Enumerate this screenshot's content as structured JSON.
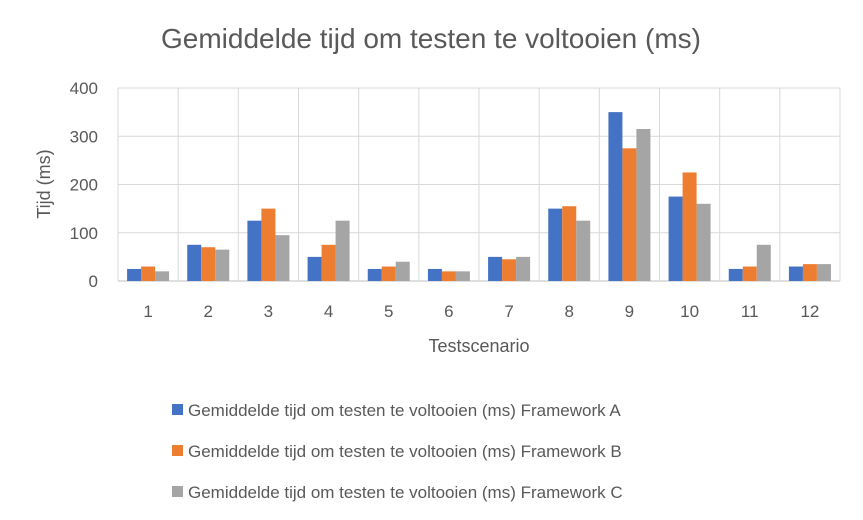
{
  "chart_data": {
    "type": "bar",
    "title": "Gemiddelde tijd om testen te voltooien (ms)",
    "xlabel": "Testscenario",
    "ylabel": "Tijd (ms)",
    "ylim": [
      0,
      400
    ],
    "yticks": [
      0,
      100,
      200,
      300,
      400
    ],
    "grid": true,
    "legend_position": "bottom",
    "categories": [
      "1",
      "2",
      "3",
      "4",
      "5",
      "6",
      "7",
      "8",
      "9",
      "10",
      "11",
      "12"
    ],
    "series": [
      {
        "name": "Gemiddelde tijd om testen te voltooien (ms) Framework A",
        "color": "#4472C4",
        "values": [
          25,
          75,
          125,
          50,
          25,
          25,
          50,
          150,
          350,
          175,
          25,
          30
        ]
      },
      {
        "name": "Gemiddelde tijd om testen te voltooien (ms) Framework B",
        "color": "#ED7D31",
        "values": [
          30,
          70,
          150,
          75,
          30,
          20,
          45,
          155,
          275,
          225,
          30,
          35
        ]
      },
      {
        "name": "Gemiddelde tijd om testen te voltooien (ms) Framework C",
        "color": "#A5A5A5",
        "values": [
          20,
          65,
          95,
          125,
          40,
          20,
          50,
          125,
          315,
          160,
          75,
          35
        ]
      }
    ]
  }
}
